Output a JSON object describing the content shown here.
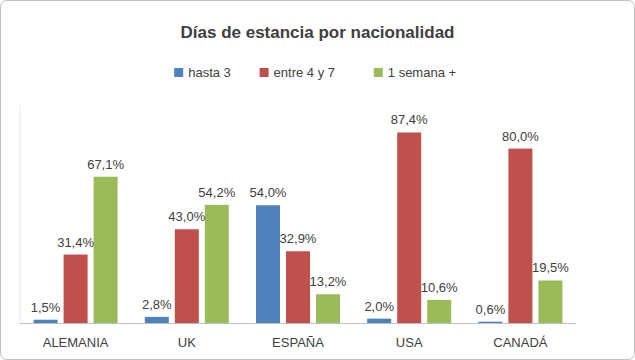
{
  "chart_data": {
    "type": "bar",
    "title": "Días de estancia por nacionalidad",
    "categories": [
      "ALEMANIA",
      "UK",
      "ESPAÑA",
      "USA",
      "CANADÁ"
    ],
    "series": [
      {
        "name": "hasta 3",
        "color": "#4f81bd",
        "values": [
          1.5,
          2.8,
          54.0,
          2.0,
          0.6
        ],
        "value_labels": [
          "1,5%",
          "2,8%",
          "54,0%",
          "2,0%",
          "0,6%"
        ]
      },
      {
        "name": "entre 4 y 7",
        "color": "#c0504d",
        "values": [
          31.4,
          43.0,
          32.9,
          87.4,
          80.0
        ],
        "value_labels": [
          "31,4%",
          "43,0%",
          "32,9%",
          "87,4%",
          "80,0%"
        ]
      },
      {
        "name": "1 semana +",
        "color": "#9bbb59",
        "values": [
          67.1,
          54.2,
          13.2,
          10.6,
          19.5
        ],
        "value_labels": [
          "67,1%",
          "54,2%",
          "13,2%",
          "10,6%",
          "19,5%"
        ]
      }
    ],
    "ylim": [
      0,
      100
    ],
    "grid": false,
    "legend": "top",
    "data_labels": true,
    "tick_labels": "x"
  }
}
